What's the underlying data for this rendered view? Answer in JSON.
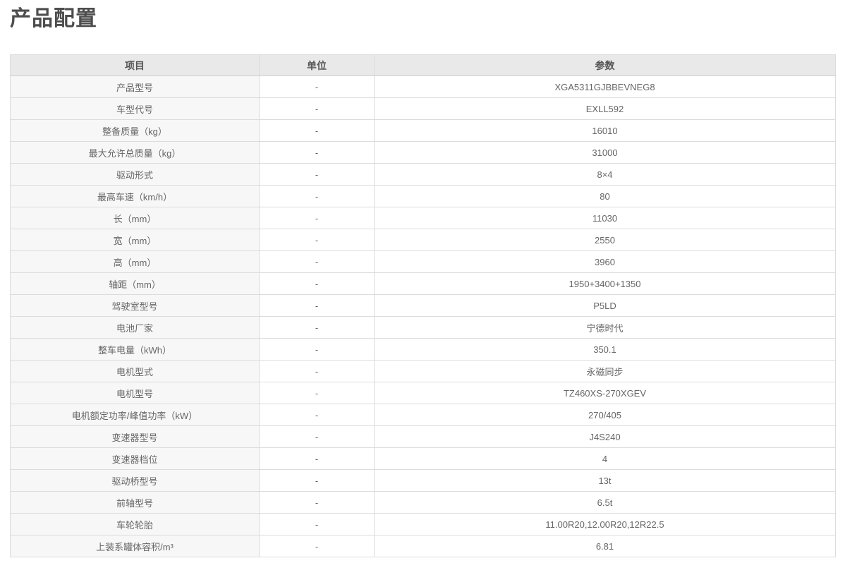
{
  "page": {
    "title": "产品配置"
  },
  "table": {
    "headers": [
      "项目",
      "单位",
      "参数"
    ],
    "rows": [
      {
        "item": "产品型号",
        "unit": "-",
        "value": "XGA5311GJBBEVNEG8"
      },
      {
        "item": "车型代号",
        "unit": "-",
        "value": "EXLL592"
      },
      {
        "item": "整备质量（kg）",
        "unit": "-",
        "value": "16010"
      },
      {
        "item": "最大允许总质量（kg）",
        "unit": "-",
        "value": "31000"
      },
      {
        "item": "驱动形式",
        "unit": "-",
        "value": "8×4"
      },
      {
        "item": "最高车速（km/h）",
        "unit": "-",
        "value": "80"
      },
      {
        "item": "长（mm）",
        "unit": "-",
        "value": "11030"
      },
      {
        "item": "宽（mm）",
        "unit": "-",
        "value": "2550"
      },
      {
        "item": "高（mm）",
        "unit": "-",
        "value": "3960"
      },
      {
        "item": "轴距（mm）",
        "unit": "-",
        "value": "1950+3400+1350"
      },
      {
        "item": "驾驶室型号",
        "unit": "-",
        "value": "P5LD"
      },
      {
        "item": "电池厂家",
        "unit": "-",
        "value": "宁德时代"
      },
      {
        "item": "整车电量（kWh）",
        "unit": "-",
        "value": "350.1"
      },
      {
        "item": "电机型式",
        "unit": "-",
        "value": "永磁同步"
      },
      {
        "item": "电机型号",
        "unit": "-",
        "value": "TZ460XS-270XGEV"
      },
      {
        "item": "电机额定功率/峰值功率（kW）",
        "unit": "-",
        "value": "270/405"
      },
      {
        "item": "变速器型号",
        "unit": "-",
        "value": "J4S240"
      },
      {
        "item": "变速器档位",
        "unit": "-",
        "value": "4"
      },
      {
        "item": "驱动桥型号",
        "unit": "-",
        "value": "13t"
      },
      {
        "item": "前轴型号",
        "unit": "-",
        "value": "6.5t"
      },
      {
        "item": "车轮轮胎",
        "unit": "-",
        "value": "11.00R20,12.00R20,12R22.5"
      },
      {
        "item": "上装系罐体容积/m³",
        "unit": "-",
        "value": "6.81"
      }
    ]
  }
}
